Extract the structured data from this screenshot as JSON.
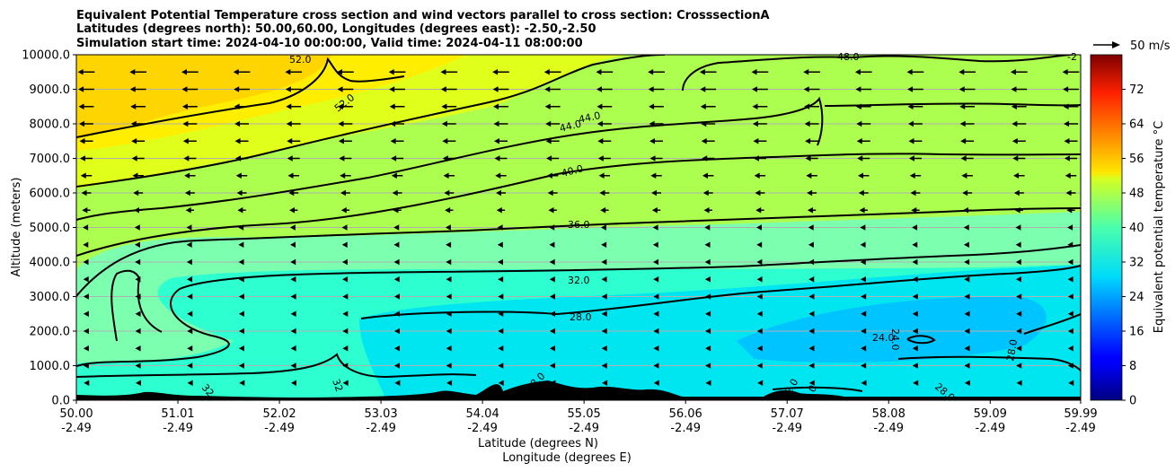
{
  "chart_data": {
    "type": "heatmap",
    "title_lines": [
      "Equivalent Potential Temperature cross section and wind vectors parallel to cross section: CrosssectionA",
      "Latitudes (degrees north): 50.00,60.00, Longitudes (degrees east): -2.50,-2.50",
      "Simulation start time: 2024-04-10 00:00:00, Valid time: 2024-04-11 08:00:00"
    ],
    "xlabel_lines": [
      "Latitude (degrees N)",
      "Longitude (degrees E)"
    ],
    "ylabel": "Altitude (meters)",
    "x_range": [
      50.0,
      59.99
    ],
    "ylim": [
      0,
      10000
    ],
    "x_ticks": [
      {
        "lat": "50.00",
        "lon": "-2.49",
        "value": 50.0
      },
      {
        "lat": "51.01",
        "lon": "-2.49",
        "value": 51.01
      },
      {
        "lat": "52.02",
        "lon": "-2.49",
        "value": 52.02
      },
      {
        "lat": "53.03",
        "lon": "-2.49",
        "value": 53.03
      },
      {
        "lat": "54.04",
        "lon": "-2.49",
        "value": 54.04
      },
      {
        "lat": "55.05",
        "lon": "-2.49",
        "value": 55.05
      },
      {
        "lat": "56.06",
        "lon": "-2.49",
        "value": 56.06
      },
      {
        "lat": "57.07",
        "lon": "-2.49",
        "value": 57.07
      },
      {
        "lat": "58.08",
        "lon": "-2.49",
        "value": 58.08
      },
      {
        "lat": "59.09",
        "lon": "-2.49",
        "value": 59.09
      },
      {
        "lat": "59.99",
        "lon": "-2.49",
        "value": 59.99
      }
    ],
    "y_ticks": [
      {
        "label": "0.0",
        "value": 0
      },
      {
        "label": "1000.0",
        "value": 1000
      },
      {
        "label": "2000.0",
        "value": 2000
      },
      {
        "label": "3000.0",
        "value": 3000
      },
      {
        "label": "4000.0",
        "value": 4000
      },
      {
        "label": "5000.0",
        "value": 5000
      },
      {
        "label": "6000.0",
        "value": 6000
      },
      {
        "label": "7000.0",
        "value": 7000
      },
      {
        "label": "8000.0",
        "value": 8000
      },
      {
        "label": "9000.0",
        "value": 9000
      },
      {
        "label": "10000.0",
        "value": 10000
      }
    ],
    "grid": "horizontal",
    "colorbar": {
      "label": "Equivalent potential temperature °C",
      "range": [
        0,
        80
      ],
      "ticks": [
        0,
        8,
        16,
        24,
        32,
        40,
        48,
        56,
        64,
        72
      ],
      "tick_labels": [
        "0",
        "8",
        "16",
        "24",
        "32",
        "40",
        "48",
        "56",
        "64",
        "72"
      ],
      "colormap": "jet"
    },
    "contours": [
      {
        "level": 24.0,
        "label": "24.0"
      },
      {
        "level": 28.0,
        "label": "28.0"
      },
      {
        "level": 32.0,
        "label": "32.0"
      },
      {
        "level": 36.0,
        "label": "36.0"
      },
      {
        "level": 40.0,
        "label": "40.0"
      },
      {
        "level": 44.0,
        "label": "44.0"
      },
      {
        "level": 48.0,
        "label": "48.0"
      },
      {
        "level": 52.0,
        "label": "52.0"
      }
    ],
    "contour_label_texts": [
      "52.0",
      "52.0",
      "44.0",
      "44.0",
      "40.0",
      "36.0",
      "32.0",
      "28.0",
      "24.0",
      "24.0",
      "28.0",
      "28.0",
      "28.0",
      "32",
      "32",
      "-2",
      "2.0",
      "0"
    ],
    "wind_key": {
      "label": "50 m/s",
      "speed": 50
    },
    "wind_direction": "westward (toward lower latitude), stronger aloft",
    "wind_arrow_values_ms": [
      {
        "altitude": 9500,
        "speed": 12
      },
      {
        "altitude": 7000,
        "speed": 9
      },
      {
        "altitude": 5000,
        "speed": 5
      },
      {
        "altitude": 3000,
        "speed": 4
      },
      {
        "altitude": 1000,
        "speed": 4
      },
      {
        "altitude": 0,
        "speed": 3
      }
    ]
  }
}
